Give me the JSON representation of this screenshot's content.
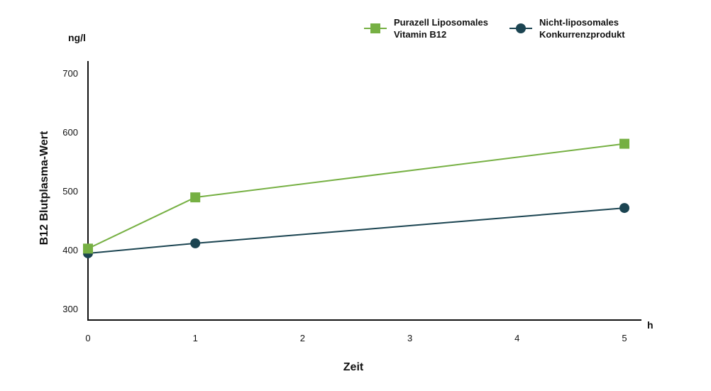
{
  "chart_data": {
    "type": "line",
    "xlabel": "Zeit",
    "ylabel": "B12 Blutplasma-Wert",
    "x_unit": "h",
    "y_unit": "ng/l",
    "xlim": [
      0,
      5
    ],
    "ylim": [
      280,
      720
    ],
    "x_ticks": [
      "0",
      "1",
      "2",
      "3",
      "4",
      "5"
    ],
    "y_ticks": [
      "300",
      "400",
      "500",
      "600",
      "700"
    ],
    "grid": false,
    "legend_position": "top-right",
    "series": [
      {
        "name_lines": [
          "Purazell Liposomales",
          "Vitamin B12"
        ],
        "color": "#76b043",
        "marker": "square",
        "x": [
          0,
          1,
          5
        ],
        "y": [
          402,
          489,
          580
        ]
      },
      {
        "name_lines": [
          "Nicht-liposomales",
          "Konkurrenzprodukt"
        ],
        "color": "#1b4451",
        "marker": "circle",
        "x": [
          0,
          1,
          5
        ],
        "y": [
          394,
          411,
          471
        ]
      }
    ]
  }
}
